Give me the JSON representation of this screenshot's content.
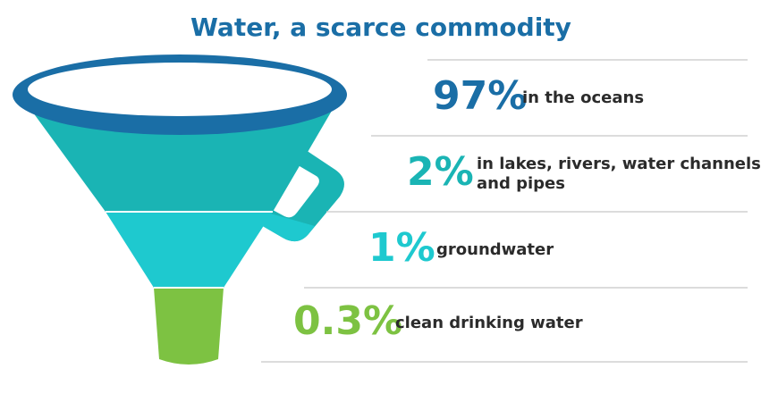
{
  "title": "Water, a scarce commodity",
  "items": [
    {
      "value": "97%",
      "label": [
        "in the oceans"
      ]
    },
    {
      "value": "2%",
      "label": [
        "in lakes, rivers, water channels",
        "and pipes"
      ]
    },
    {
      "value": "1%",
      "label": [
        "groundwater"
      ]
    },
    {
      "value": "0.3%",
      "label": [
        "clean drinking water"
      ]
    }
  ]
}
